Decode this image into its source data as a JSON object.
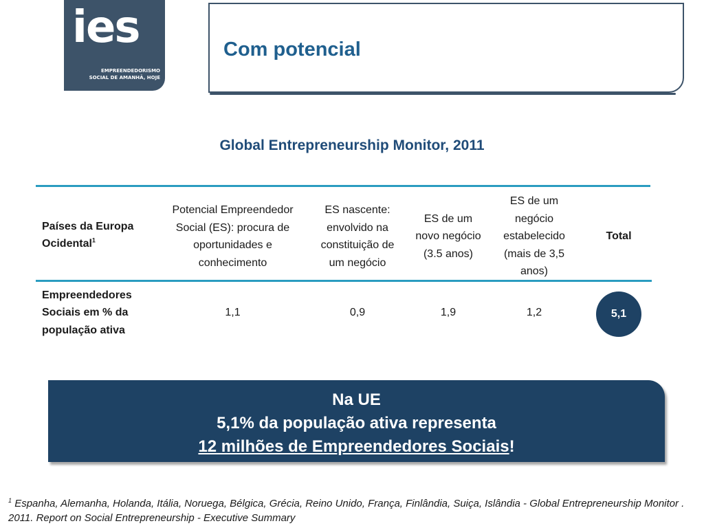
{
  "logo": {
    "word": "ies",
    "tagline_1": "EMPREENDEDORISMO",
    "tagline_2": "SOCIAL DE AMANHÃ, HOJE"
  },
  "title": "Com potencial",
  "subtitle": "Global Entrepreneurship Monitor, 2011",
  "table": {
    "header_row_label": "Países da Europa Ocidental",
    "header_row_label_sup": "1",
    "columns": [
      "Potencial Empreendedor Social (ES): procura de oportunidades e conhecimento",
      "ES nascente: envolvido na constituição de um negócio",
      "ES de um novo negócio (3.5 anos)",
      "ES de um negócio estabelecido (mais de 3,5 anos)",
      "Total"
    ],
    "row_label": "Empreendedores Sociais em % da população ativa",
    "values": [
      "1,1",
      "0,9",
      "1,9",
      "1,2",
      "5,1"
    ]
  },
  "callout": {
    "line_1": "Na UE",
    "line_2": "5,1% da população ativa representa",
    "line_3_underlined": "12 milhões de Empreendedores Sociais",
    "line_3_suffix": "!"
  },
  "footnote": {
    "marker": "1",
    "text": "Espanha, Alemanha, Holanda, Itália, Noruega, Bélgica, Grécia, Reino Unido, França, Finlândia, Suiça, Islândia - Global Entrepreneurship Monitor . 2011. Report on Social Entrepreneurship  - Executive Summary"
  },
  "colors": {
    "logo_bg": "#3d5369",
    "title": "#1f5f8e",
    "rule": "#2a9cc0",
    "callout_bg": "#1e4264"
  }
}
